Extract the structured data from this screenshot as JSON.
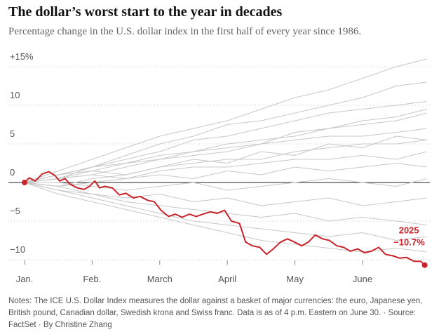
{
  "chart_data": {
    "type": "line",
    "title": "The dollar’s worst start to the year in decades",
    "subtitle": "Percentage change in the U.S. dollar index in the first half of every year since 1986.",
    "notes": "Notes: The ICE U.S. Dollar Index measures the dollar against a basket of major currencies: the euro, Japanese yen, British pound, Canadian dollar, Swedish krona and Swiss franc. Data is as of 4 p.m. Eastern on June 30.",
    "source": "Source: FactSet",
    "credit": "By Christine Zhang",
    "xlim": [
      0,
      6.1
    ],
    "ylim": [
      -11,
      16
    ],
    "xticks": [
      {
        "value": 0,
        "label": "Jan."
      },
      {
        "value": 1,
        "label": "Feb."
      },
      {
        "value": 2,
        "label": "March"
      },
      {
        "value": 3,
        "label": "April"
      },
      {
        "value": 4,
        "label": "May"
      },
      {
        "value": 5,
        "label": "June"
      }
    ],
    "yticks": [
      {
        "value": 15,
        "label": "+15%"
      },
      10,
      5,
      0,
      {
        "value": -5,
        "label": "−5"
      },
      {
        "value": -10,
        "label": "−10"
      }
    ],
    "grid": true,
    "x": [
      0,
      0.5,
      1,
      1.5,
      2,
      2.5,
      3,
      3.5,
      4,
      4.5,
      5,
      5.5,
      5.95
    ],
    "series": [
      {
        "color": "#c8c8c8",
        "values": [
          0,
          1.5,
          3,
          4.5,
          6,
          7,
          8,
          9.5,
          11,
          12,
          13.5,
          15,
          16
        ]
      },
      {
        "color": "#c8c8c8",
        "values": [
          0,
          1,
          2,
          3.5,
          5,
          6,
          7.5,
          8,
          9,
          10,
          11,
          12.5,
          13
        ]
      },
      {
        "color": "#c8c8c8",
        "values": [
          0,
          0.5,
          2,
          3,
          4,
          5.5,
          6,
          7,
          8,
          9,
          9.5,
          10,
          10.5
        ]
      },
      {
        "color": "#c8c8c8",
        "values": [
          0,
          1,
          1.5,
          2.5,
          3,
          4,
          5,
          5.5,
          6,
          7,
          7.5,
          8,
          9
        ]
      },
      {
        "color": "#c8c8c8",
        "values": [
          0,
          0.5,
          1,
          2,
          3,
          3.5,
          4,
          5,
          5.5,
          6,
          6,
          6.5,
          7
        ]
      },
      {
        "color": "#c8c8c8",
        "values": [
          0,
          -0.5,
          0.5,
          1,
          2,
          2.5,
          3,
          3,
          4,
          4.5,
          5,
          5,
          5.5
        ]
      },
      {
        "color": "#c8c8c8",
        "values": [
          0,
          0.5,
          1,
          0.5,
          1.5,
          2,
          2,
          2.5,
          3,
          3,
          3.5,
          3,
          4
        ]
      },
      {
        "color": "#c8c8c8",
        "values": [
          0,
          -0.5,
          0,
          0.5,
          1,
          0.5,
          1.5,
          1,
          2,
          1.5,
          2,
          2.5,
          2
        ]
      },
      {
        "color": "#c8c8c8",
        "values": [
          0,
          0,
          -0.5,
          -1,
          -0.5,
          0,
          -1,
          -0.5,
          0,
          0.5,
          0,
          -0.5,
          0.5
        ]
      },
      {
        "color": "#c8c8c8",
        "values": [
          0,
          -1,
          -1.5,
          -2,
          -1.5,
          -2.5,
          -2,
          -3,
          -2.5,
          -2,
          -3,
          -2.5,
          -2
        ]
      },
      {
        "color": "#c8c8c8",
        "values": [
          0,
          -0.5,
          -1.5,
          -2.5,
          -3,
          -3.5,
          -4,
          -4.5,
          -4,
          -5,
          -4.5,
          -5,
          -5.5
        ]
      },
      {
        "color": "#c8c8c8",
        "values": [
          0,
          -1,
          -2,
          -3,
          -4,
          -5,
          -5.5,
          -6,
          -6.5,
          -7,
          -6.5,
          -7.5,
          -7
        ]
      },
      {
        "color": "#c8c8c8",
        "values": [
          0,
          -1.5,
          -2.5,
          -3.5,
          -4.5,
          -5.5,
          -6.5,
          -7.5,
          -8,
          -8.5,
          -9,
          -8.5,
          -9
        ]
      },
      {
        "color": "#c8c8c8",
        "values": [
          0,
          1,
          2,
          2.5,
          3.5,
          4,
          4.5,
          5,
          6.5,
          7,
          8,
          8.5,
          9.5
        ]
      },
      {
        "color": "#c8c8c8",
        "values": [
          0,
          0.5,
          1.5,
          1,
          2,
          3,
          2.5,
          4,
          3.5,
          5,
          4.5,
          6,
          5.5
        ]
      },
      {
        "name": "2025",
        "color": "#c8242b",
        "x": [
          0,
          0.07,
          0.16,
          0.26,
          0.36,
          0.45,
          0.52,
          0.6,
          0.67,
          0.78,
          0.88,
          0.96,
          1.04,
          1.11,
          1.19,
          1.3,
          1.4,
          1.5,
          1.61,
          1.71,
          1.82,
          1.92,
          2.02,
          2.13,
          2.23,
          2.33,
          2.44,
          2.54,
          2.64,
          2.75,
          2.85,
          2.96,
          3.06,
          3.18,
          3.27,
          3.37,
          3.48,
          3.58,
          3.68,
          3.79,
          3.89,
          3.99,
          4.1,
          4.2,
          4.3,
          4.41,
          4.51,
          4.62,
          4.72,
          4.82,
          4.93,
          5.03,
          5.13,
          5.24,
          5.34,
          5.45,
          5.55,
          5.65,
          5.76,
          5.86,
          5.92
        ],
        "values": [
          0,
          0.6,
          0.2,
          1.1,
          1.4,
          0.9,
          0.2,
          0.5,
          -0.2,
          -0.7,
          -0.9,
          -0.5,
          0.2,
          -0.7,
          -0.5,
          -0.7,
          -1.6,
          -1.4,
          -2.0,
          -1.8,
          -2.3,
          -2.5,
          -3.6,
          -4.4,
          -4.1,
          -4.5,
          -4.1,
          -4.4,
          -4.1,
          -3.8,
          -4.0,
          -3.6,
          -5.0,
          -5.3,
          -7.7,
          -8.2,
          -8.4,
          -9.3,
          -8.6,
          -7.7,
          -7.3,
          -7.7,
          -8.2,
          -7.7,
          -6.8,
          -7.3,
          -7.5,
          -8.2,
          -8.4,
          -8.9,
          -8.6,
          -9.1,
          -8.9,
          -8.4,
          -9.3,
          -9.5,
          -9.8,
          -9.7,
          -10.2,
          -10.2,
          -10.7
        ],
        "value_labels": [
          null,
          null,
          null,
          null,
          null,
          null,
          null,
          null,
          null,
          null,
          null,
          null,
          null,
          null,
          null,
          null,
          null,
          null,
          null,
          null,
          null,
          null,
          null,
          null,
          null,
          null,
          null,
          null,
          null,
          null,
          null,
          null,
          null,
          null,
          null,
          null,
          null,
          null,
          null,
          null,
          null,
          null,
          null,
          null,
          null,
          null,
          null,
          null,
          null,
          null,
          null,
          null,
          null,
          null,
          null,
          null,
          null,
          null,
          null,
          null,
          "−10.7%"
        ]
      }
    ]
  }
}
